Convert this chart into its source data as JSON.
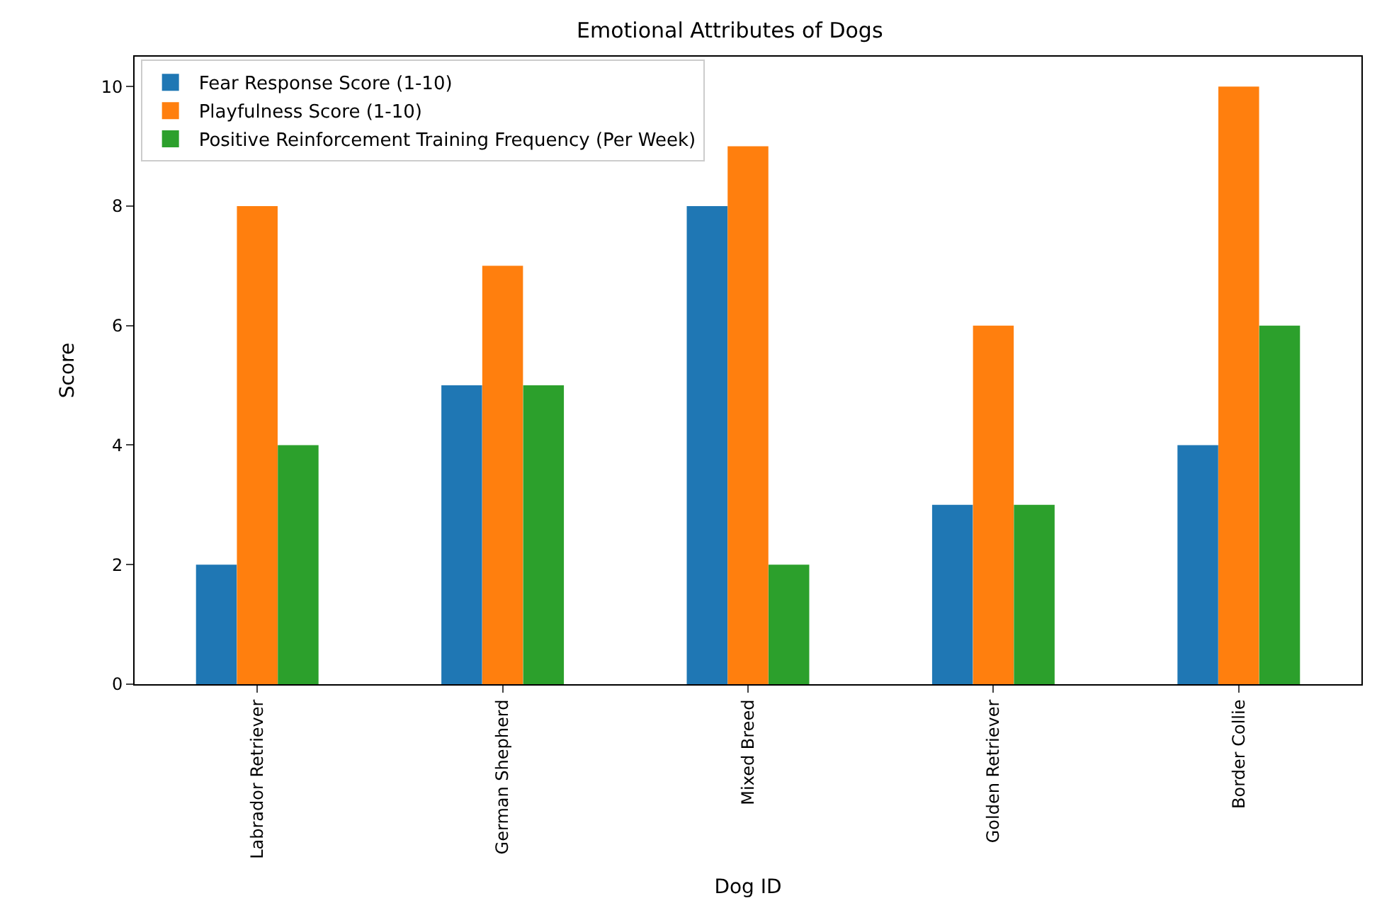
{
  "chart_data": {
    "type": "bar",
    "title": "Emotional Attributes of Dogs",
    "xlabel": "Dog ID",
    "ylabel": "Score",
    "categories": [
      "Labrador Retriever",
      "German Shepherd",
      "Mixed Breed",
      "Golden Retriever",
      "Border Collie"
    ],
    "series": [
      {
        "name": "Fear Response Score (1-10)",
        "color": "#1f77b4",
        "values": [
          2,
          5,
          8,
          3,
          4
        ]
      },
      {
        "name": "Playfulness Score (1-10)",
        "color": "#ff7f0e",
        "values": [
          8,
          7,
          9,
          6,
          10
        ]
      },
      {
        "name": "Positive Reinforcement Training Frequency (Per Week)",
        "color": "#2ca02c",
        "values": [
          4,
          5,
          2,
          3,
          6
        ]
      }
    ],
    "ylim": [
      0,
      10.5
    ],
    "yticks": [
      0,
      2,
      4,
      6,
      8,
      10
    ],
    "grid": false,
    "legend": "top left"
  }
}
